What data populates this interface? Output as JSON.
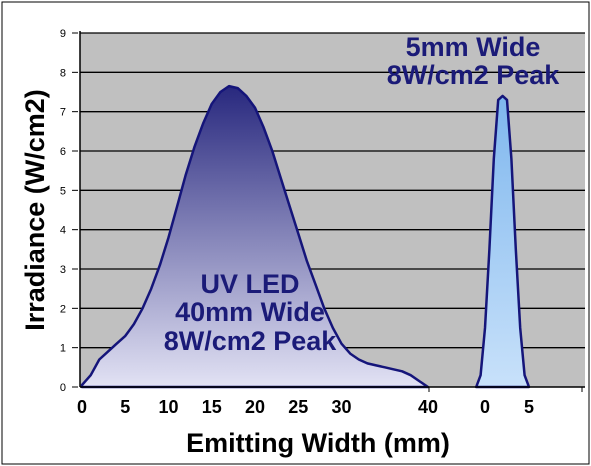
{
  "chart_data": [
    {
      "type": "area",
      "title": "",
      "xlabel": "Emitting Width (mm)",
      "ylabel": "Irradiance (W/cm2)",
      "xlim": [
        0,
        40
      ],
      "ylim": [
        0,
        9
      ],
      "xticks": [
        "0",
        "5",
        "10",
        "15",
        "20",
        "25",
        "30",
        "40"
      ],
      "yticks": [
        "0",
        "1",
        "2",
        "3",
        "4",
        "5",
        "6",
        "7",
        "8",
        "9"
      ],
      "grid": true,
      "series": [
        {
          "name": "UV LED",
          "x": [
            0,
            1,
            2,
            3,
            4,
            5,
            6,
            7,
            8,
            9,
            10,
            11,
            12,
            13,
            14,
            15,
            16,
            17,
            18,
            19,
            20,
            21,
            22,
            23,
            24,
            25,
            26,
            27,
            28,
            29,
            30,
            31,
            32,
            33,
            34,
            35,
            36,
            37,
            38,
            39,
            40
          ],
          "y": [
            0.05,
            0.3,
            0.7,
            0.9,
            1.1,
            1.3,
            1.6,
            2.0,
            2.5,
            3.1,
            3.8,
            4.6,
            5.4,
            6.1,
            6.7,
            7.2,
            7.5,
            7.65,
            7.6,
            7.4,
            7.1,
            6.6,
            6.0,
            5.3,
            4.6,
            3.9,
            3.2,
            2.6,
            2.0,
            1.5,
            1.1,
            0.85,
            0.7,
            0.6,
            0.55,
            0.5,
            0.45,
            0.4,
            0.3,
            0.15,
            0.0
          ]
        },
        {
          "name": "5mm",
          "x": [
            -1,
            -0.5,
            0,
            0.5,
            1,
            1.5,
            2,
            2.5,
            3,
            3.5,
            4,
            4.5,
            5
          ],
          "y": [
            0.0,
            0.3,
            1.5,
            3.5,
            5.8,
            7.3,
            7.4,
            7.3,
            5.8,
            3.5,
            1.5,
            0.3,
            0.0
          ]
        }
      ],
      "annotations": [
        {
          "lines": [
            "UV LED",
            "40mm Wide",
            "8W/cm2 Peak"
          ]
        },
        {
          "lines": [
            "5mm Wide",
            "8W/cm2 Peak"
          ]
        }
      ],
      "xticks2": [
        "0",
        "5"
      ]
    }
  ],
  "colors": {
    "plot_background": "#c0c0c0",
    "gridline": "#000000",
    "outline": "#15157a",
    "text": "#1b1b78",
    "axis_text": "#000000",
    "led_fill_top": "#28287e",
    "led_fill_bottom": "#e2e2f4",
    "narrow_fill_top": "#7fb7ee",
    "narrow_fill_bottom": "#c8e1fa"
  }
}
